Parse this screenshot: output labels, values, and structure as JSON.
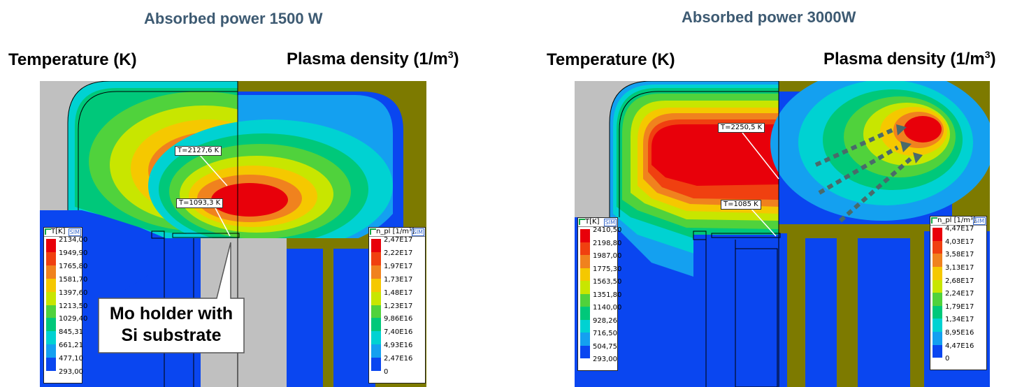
{
  "panels": [
    {
      "title": "Absorbed power 1500 W",
      "left_label": "Temperature (K)",
      "right_label": "Plasma density (1/m",
      "right_label_sup": "3",
      "right_label_close": ")",
      "temp_legend": {
        "header": "T[K]",
        "values": [
          "2134,00",
          "1949,90",
          "1765,80",
          "1581,70",
          "1397,60",
          "1213,50",
          "1029,40",
          "845,31",
          "661,21",
          "477,10",
          "293,00"
        ]
      },
      "density_legend": {
        "header": "n_pl [1/m³]",
        "values": [
          "2,47E17",
          "2,22E17",
          "1,97E17",
          "1,73E17",
          "1,48E17",
          "1,23E17",
          "9,86E16",
          "7,40E16",
          "4,93E16",
          "2,47E16",
          "0"
        ]
      },
      "tags": [
        "T=2127,6 K",
        "T=1093,3 K"
      ],
      "callout": [
        "Mo holder with",
        "Si substrate"
      ]
    },
    {
      "title": "Absorbed power 3000W",
      "left_label": "Temperature (K)",
      "right_label": "Plasma density (1/m",
      "right_label_sup": "3",
      "right_label_close": ")",
      "temp_legend": {
        "header": "T[K]",
        "values": [
          "2410,50",
          "2198,80",
          "1987,00",
          "1775,30",
          "1563,50",
          "1351,80",
          "1140,00",
          "928,26",
          "716,50",
          "504,75",
          "293,00"
        ]
      },
      "density_legend": {
        "header": "n_pl [1/m³]",
        "values": [
          "4,47E17",
          "4,03E17",
          "3,58E17",
          "3,13E17",
          "2,68E17",
          "2,24E17",
          "1,79E17",
          "1,34E17",
          "8,95E16",
          "4,47E16",
          "0"
        ]
      },
      "tags": [
        "T=2250,5 K",
        "T=1085 K"
      ]
    }
  ],
  "colors": {
    "scale": [
      "#e8000a",
      "#f04010",
      "#f0821e",
      "#f5c800",
      "#c8e600",
      "#50d23c",
      "#00c87a",
      "#00d2d2",
      "#14a0f0",
      "#0a46f0",
      "#0000b4"
    ],
    "wall": "#7d7a00",
    "gray_region": "#c0c0c0",
    "title": "#3d5a72",
    "arrows": "#4a6a6a"
  },
  "legend_logo": "SIM"
}
